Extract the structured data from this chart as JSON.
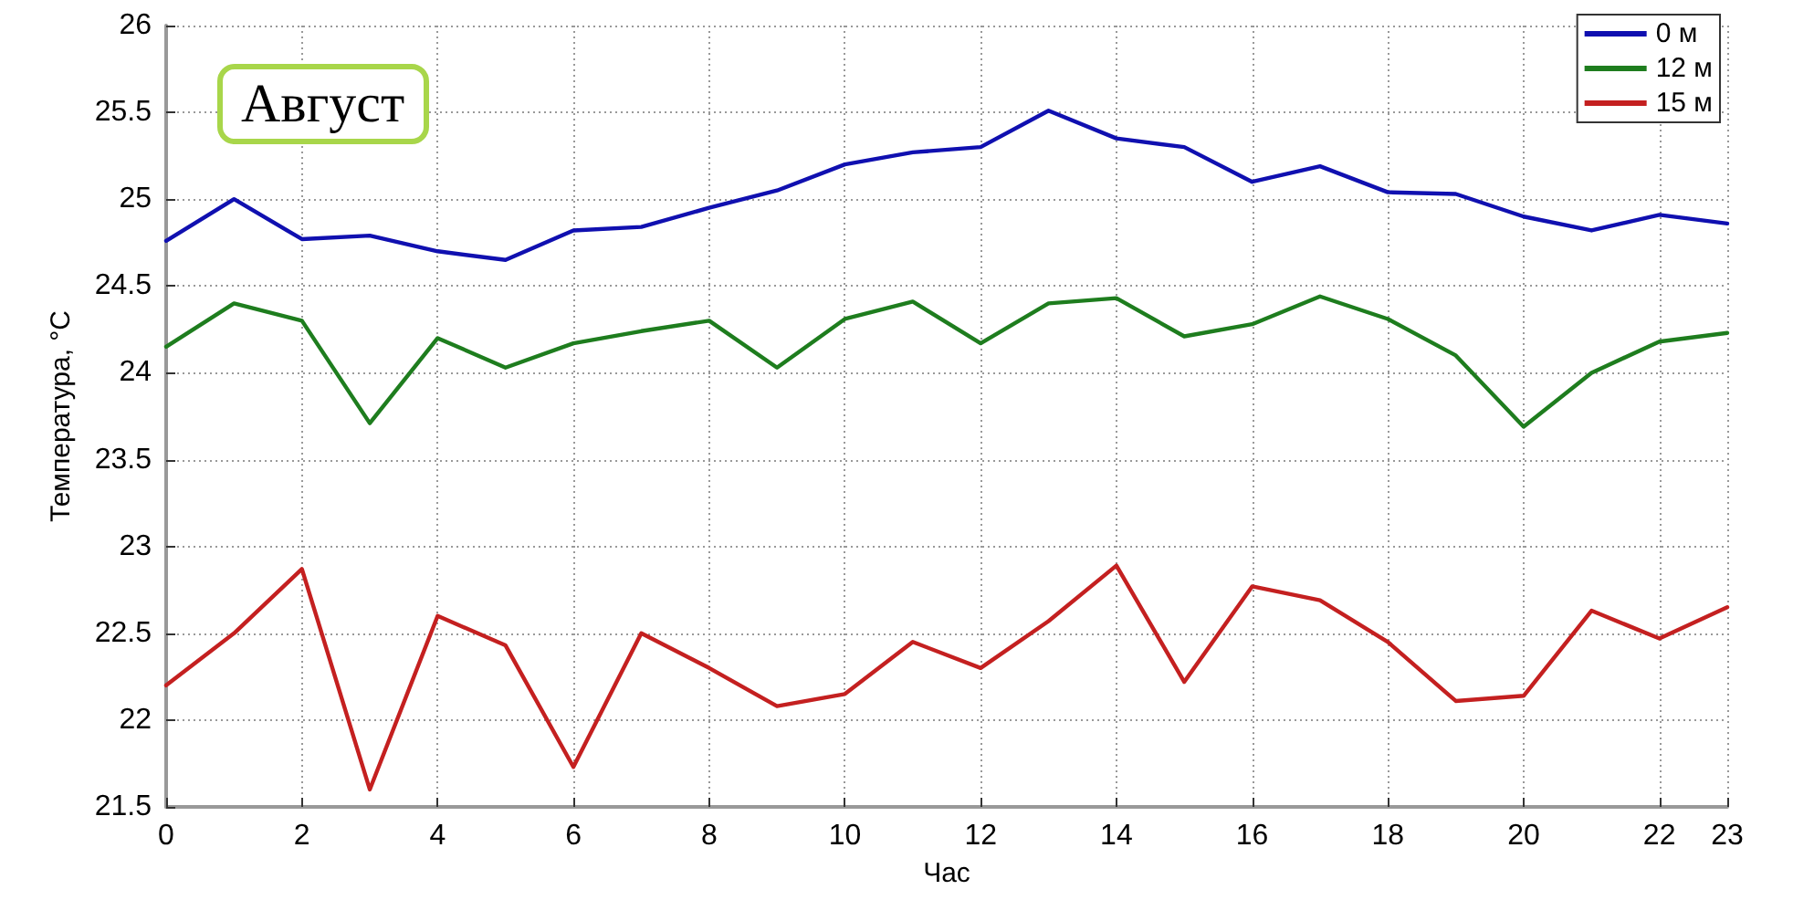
{
  "chart_data": {
    "type": "line",
    "title": "Август",
    "xlabel": "Час",
    "ylabel": "Температура, °C",
    "x": [
      0,
      1,
      2,
      3,
      4,
      5,
      6,
      7,
      8,
      9,
      10,
      11,
      12,
      13,
      14,
      15,
      16,
      17,
      18,
      19,
      20,
      21,
      22,
      23
    ],
    "series": [
      {
        "name": "0 м",
        "color": "#1010b0",
        "values": [
          24.76,
          25.0,
          24.77,
          24.79,
          24.7,
          24.65,
          24.82,
          24.84,
          24.95,
          25.05,
          25.2,
          25.27,
          25.3,
          25.51,
          25.35,
          25.3,
          25.1,
          25.19,
          25.04,
          25.03,
          24.9,
          24.82,
          24.91,
          24.86
        ]
      },
      {
        "name": "12 м",
        "color": "#1e7d1e",
        "values": [
          24.15,
          24.4,
          24.3,
          23.71,
          24.2,
          24.03,
          24.17,
          24.24,
          24.3,
          24.03,
          24.31,
          24.41,
          24.17,
          24.4,
          24.43,
          24.21,
          24.28,
          24.44,
          24.31,
          24.1,
          23.69,
          24.0,
          24.18,
          24.23
        ]
      },
      {
        "name": "15 м",
        "color": "#c42020",
        "values": [
          22.2,
          22.5,
          22.87,
          21.6,
          22.6,
          22.43,
          21.73,
          22.5,
          22.3,
          22.08,
          22.15,
          22.45,
          22.3,
          22.57,
          22.89,
          22.22,
          22.77,
          22.69,
          22.45,
          22.11,
          22.14,
          22.63,
          22.47,
          22.65
        ]
      }
    ],
    "xlim": [
      0,
      23
    ],
    "xticks": [
      0,
      2,
      4,
      6,
      8,
      10,
      12,
      14,
      16,
      18,
      20,
      22,
      23
    ],
    "ylim": [
      21.5,
      26
    ],
    "yticks": [
      21.5,
      22,
      22.5,
      23,
      23.5,
      24,
      24.5,
      25,
      25.5,
      26
    ],
    "grid": true,
    "legend": "top right",
    "marker": "none",
    "line_style": "solid"
  }
}
